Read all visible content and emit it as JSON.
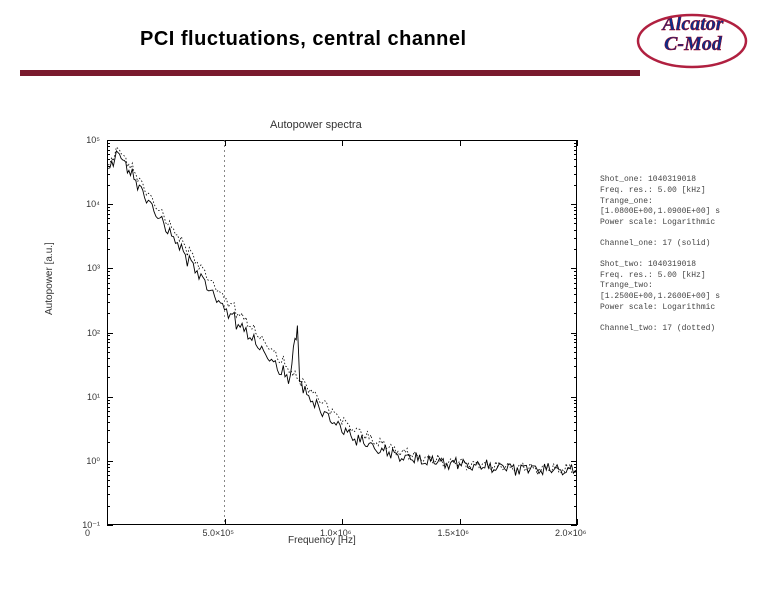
{
  "header": {
    "title": "PCI fluctuations, central channel",
    "logo_top": "Alcator",
    "logo_bottom": "C-Mod",
    "rule_color": "#7a1a2e"
  },
  "chart": {
    "type": "line",
    "title": "Autopower spectra",
    "xlabel": "Frequency [Hz]",
    "ylabel": "Autopower [a.u.]",
    "background_color": "#ffffff",
    "axis_color": "#000000",
    "label_fontsize": 10,
    "tick_fontsize": 9,
    "title_fontsize": 11,
    "xscale": "linear",
    "yscale": "log",
    "xlim": [
      0,
      2000000.0
    ],
    "ylim": [
      0.1,
      100000.0
    ],
    "xticks": [
      {
        "v": 0,
        "label": "0"
      },
      {
        "v": 500000.0,
        "label": "5.0×10⁵"
      },
      {
        "v": 1000000.0,
        "label": "1.0×10⁶"
      },
      {
        "v": 1500000.0,
        "label": "1.5×10⁶"
      },
      {
        "v": 2000000.0,
        "label": "2.0×10⁶"
      }
    ],
    "yticks": [
      {
        "v": 0.1,
        "label": "10⁻¹"
      },
      {
        "v": 1.0,
        "label": "10⁰"
      },
      {
        "v": 10.0,
        "label": "10¹"
      },
      {
        "v": 100.0,
        "label": "10²"
      },
      {
        "v": 1000.0,
        "label": "10³"
      },
      {
        "v": 10000.0,
        "label": "10⁴"
      },
      {
        "v": 100000.0,
        "label": "10⁵"
      }
    ],
    "vline_x": 500000.0,
    "vline_color": "#555555",
    "series": [
      {
        "name": "Channel_one 17 (solid)",
        "style": "solid",
        "color": "#000000",
        "linewidth": 0.9,
        "data": [
          [
            5000.0,
            30000.0
          ],
          [
            20000.0,
            45000.0
          ],
          [
            40000.0,
            60000.0
          ],
          [
            60000.0,
            55000.0
          ],
          [
            80000.0,
            42000.0
          ],
          [
            100000.0,
            30000.0
          ],
          [
            130000.0,
            20000.0
          ],
          [
            160000.0,
            14000.0
          ],
          [
            200000.0,
            8000.0
          ],
          [
            250000.0,
            4200.0
          ],
          [
            300000.0,
            2300.0
          ],
          [
            350000.0,
            1300.0
          ],
          [
            400000.0,
            750.0
          ],
          [
            450000.0,
            420.0
          ],
          [
            500000.0,
            250.0
          ],
          [
            550000.0,
            150.0
          ],
          [
            600000.0,
            90.0
          ],
          [
            650000.0,
            55.0
          ],
          [
            700000.0,
            35.0
          ],
          [
            750000.0,
            23.0
          ],
          [
            780000.0,
            18.0
          ],
          [
            800000.0,
            90.0
          ],
          [
            810000.0,
            110.0
          ],
          [
            820000.0,
            20.0
          ],
          [
            850000.0,
            11.0
          ],
          [
            900000.0,
            7.0
          ],
          [
            950000.0,
            4.5
          ],
          [
            1000000.0,
            3.0
          ],
          [
            1100000.0,
            1.8
          ],
          [
            1200000.0,
            1.3
          ],
          [
            1300000.0,
            1.05
          ],
          [
            1400000.0,
            0.95
          ],
          [
            1500000.0,
            0.88
          ],
          [
            1600000.0,
            0.8
          ],
          [
            1700000.0,
            0.78
          ],
          [
            1800000.0,
            0.75
          ],
          [
            1900000.0,
            0.72
          ],
          [
            2000000.0,
            0.7
          ]
        ]
      },
      {
        "name": "Channel_two 17 (dotted)",
        "style": "dotted",
        "color": "#000000",
        "linewidth": 0.8,
        "data": [
          [
            5000.0,
            35000.0
          ],
          [
            20000.0,
            52000.0
          ],
          [
            40000.0,
            70000.0
          ],
          [
            60000.0,
            65000.0
          ],
          [
            80000.0,
            50000.0
          ],
          [
            100000.0,
            38000.0
          ],
          [
            130000.0,
            26000.0
          ],
          [
            160000.0,
            18000.0
          ],
          [
            200000.0,
            10500.0
          ],
          [
            250000.0,
            5600.0
          ],
          [
            300000.0,
            3100.0
          ],
          [
            350000.0,
            1800.0
          ],
          [
            400000.0,
            1050.0
          ],
          [
            450000.0,
            600.0
          ],
          [
            500000.0,
            360.0
          ],
          [
            550000.0,
            220.0
          ],
          [
            600000.0,
            135.0
          ],
          [
            650000.0,
            82.0
          ],
          [
            700000.0,
            52.0
          ],
          [
            750000.0,
            34.0
          ],
          [
            800000.0,
            22.0
          ],
          [
            850000.0,
            15.0
          ],
          [
            900000.0,
            9.5
          ],
          [
            950000.0,
            6.2
          ],
          [
            1000000.0,
            4.2
          ],
          [
            1100000.0,
            2.4
          ],
          [
            1200000.0,
            1.6
          ],
          [
            1300000.0,
            1.2
          ],
          [
            1400000.0,
            1.0
          ],
          [
            1500000.0,
            0.92
          ],
          [
            1600000.0,
            0.85
          ],
          [
            1700000.0,
            0.8
          ],
          [
            1800000.0,
            0.77
          ],
          [
            1900000.0,
            0.74
          ],
          [
            2000000.0,
            0.72
          ]
        ]
      }
    ]
  },
  "info": {
    "block_one": {
      "l1": "Shot_one: 1040319018",
      "l2": "Freq. res.:   5.00 [kHz]",
      "l3": "Trange_one:",
      "l4": "[1.0800E+00,1.0900E+00] s",
      "l5": "Power scale: Logarithmic"
    },
    "channel_one": "Channel_one: 17 (solid)",
    "block_two": {
      "l1": "Shot_two: 1040319018",
      "l2": "Freq. res.:   5.00 [kHz]",
      "l3": "Trange_two:",
      "l4": "[1.2500E+00,1.2600E+00] s",
      "l5": "Power scale: Logarithmic"
    },
    "channel_two": "Channel_two: 17 (dotted)"
  }
}
